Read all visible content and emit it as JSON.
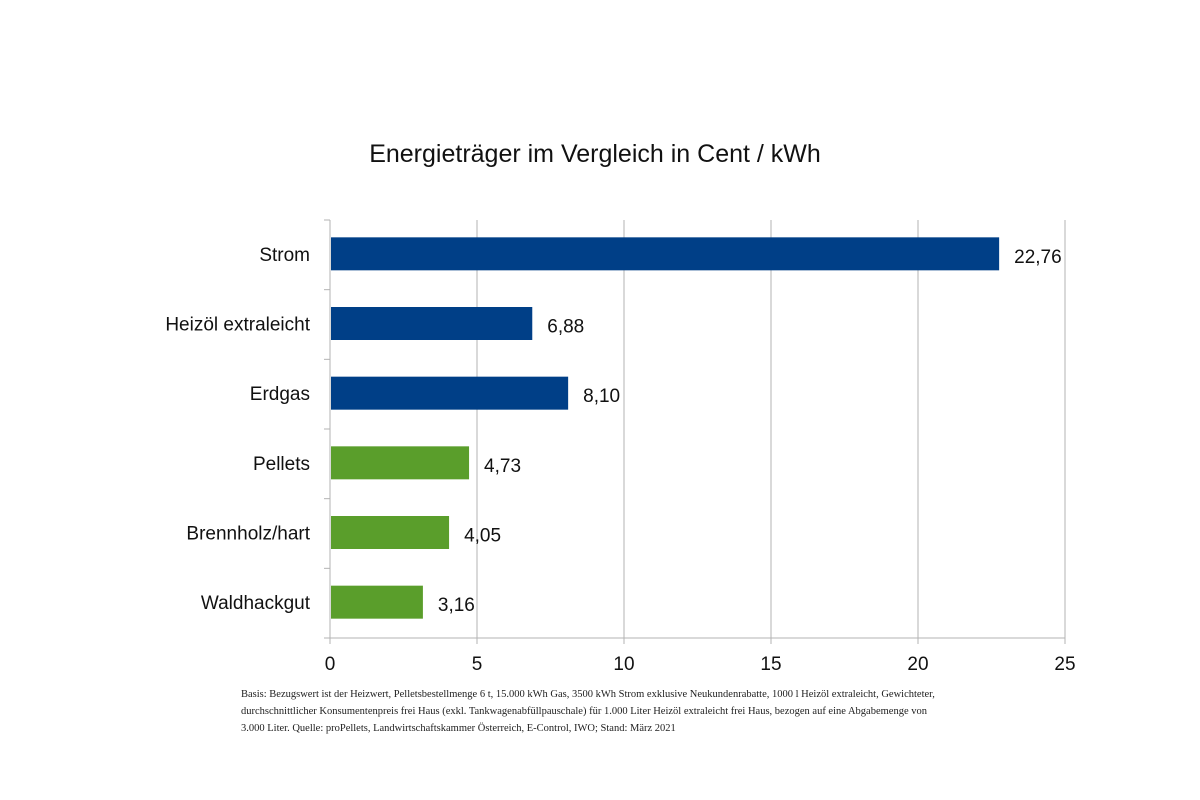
{
  "chart_data": {
    "type": "bar",
    "orientation": "horizontal",
    "title": "Energieträger im Vergleich in Cent / kWh",
    "categories": [
      "Strom",
      "Heizöl extraleicht",
      "Erdgas",
      "Pellets",
      "Brennholz/hart",
      "Waldhackgut"
    ],
    "values": [
      22.76,
      6.88,
      8.1,
      4.73,
      4.05,
      3.16
    ],
    "value_labels": [
      "22,76",
      "6,88",
      "8,10",
      "4,73",
      "4,05",
      "3,16"
    ],
    "bar_colors": [
      "#003f87",
      "#003f87",
      "#003f87",
      "#5a9e2b",
      "#5a9e2b",
      "#5a9e2b"
    ],
    "xlim": [
      0,
      25
    ],
    "x_ticks": [
      "0",
      "5",
      "10",
      "15",
      "20",
      "25"
    ],
    "grid": true,
    "legend": "none",
    "xlabel": "",
    "ylabel": ""
  },
  "footnote": [
    "Basis: Bezugswert ist der Heizwert, Pelletsbestellmenge 6 t, 15.000 kWh Gas, 3500 kWh Strom exklusive Neukundenrabatte, 1000 l Heizöl extraleicht, Gewichteter,",
    "durchschnittlicher Konsumentenpreis frei Haus (exkl. Tankwagenabfüllpauschale) für 1.000 Liter Heizöl extraleicht frei Haus, bezogen auf eine Abgabemenge von",
    "3.000 Liter.  Quelle: proPellets, Landwirtschaftskammer Österreich, E-Control, IWO; Stand: März 2021"
  ]
}
